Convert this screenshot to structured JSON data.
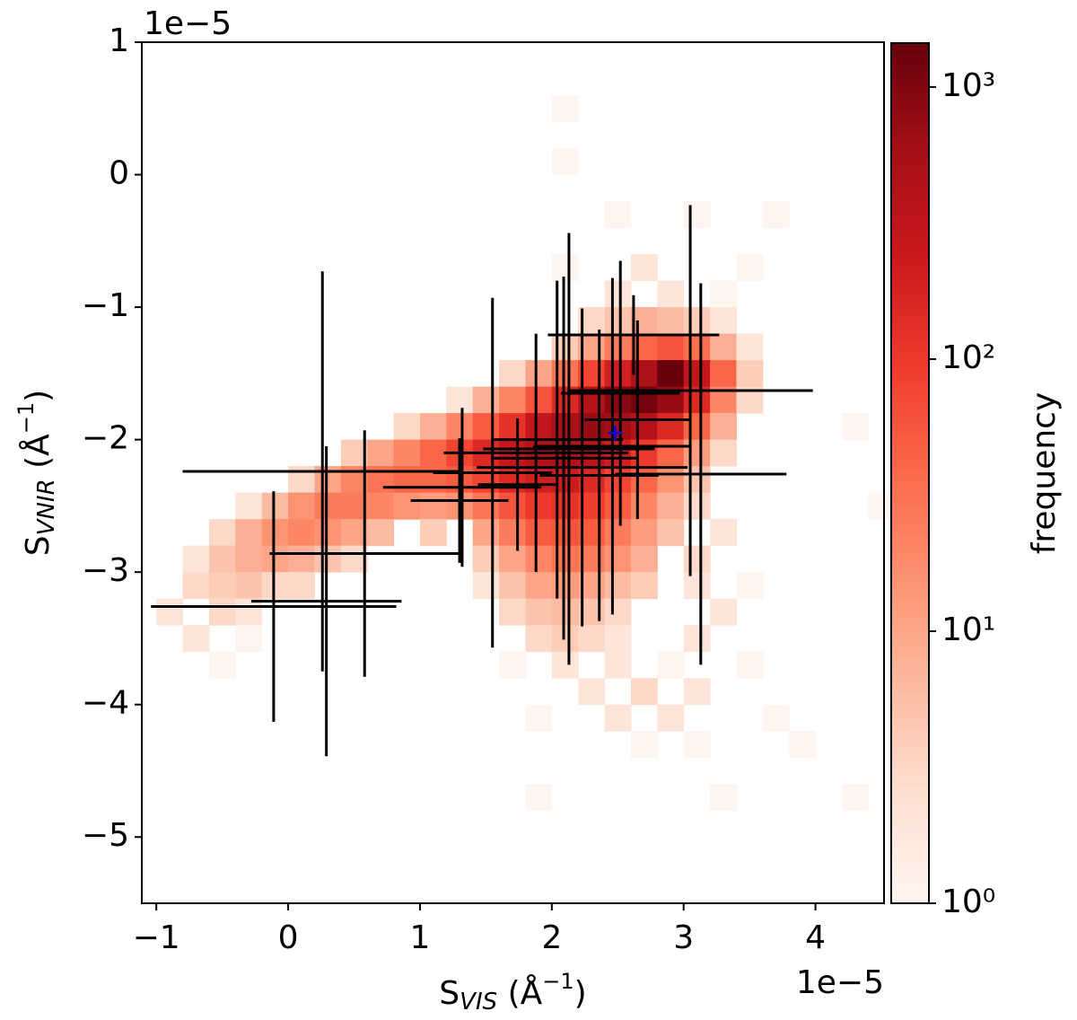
{
  "chart_data": {
    "type": "hist2d",
    "xlabel": [
      "S",
      "VIS",
      " (Å",
      "−1",
      ")"
    ],
    "ylabel": [
      "S",
      "VNIR",
      " (Å",
      "−1",
      ")"
    ],
    "x_offset_text": "1e−5",
    "y_offset_text": "1e−5",
    "xlim": [
      -1.11,
      4.52
    ],
    "ylim": [
      -5.5,
      1
    ],
    "xticks": [
      {
        "value": -1,
        "label": "−1"
      },
      0,
      1,
      2,
      3,
      4
    ],
    "yticks": [
      1,
      0,
      {
        "value": -1,
        "label": "−1"
      },
      {
        "value": -2,
        "label": "−2"
      },
      {
        "value": -3,
        "label": "−3"
      },
      {
        "value": -4,
        "label": "−4"
      },
      {
        "value": -5,
        "label": "−5"
      }
    ],
    "bin_size": [
      0.2,
      0.2
    ],
    "colormap": [
      "#fff5f0",
      "#fee0d2",
      "#fcbba1",
      "#fc9272",
      "#fb6a4a",
      "#ef3b2c",
      "#cb181d",
      "#a50f15",
      "#67000d"
    ],
    "colorbar": {
      "label": "frequency",
      "log": true,
      "clim": [
        1,
        1450
      ],
      "ticks": [
        {
          "value": 1,
          "label": "10⁰"
        },
        {
          "value": 10,
          "label": "10¹"
        },
        {
          "value": 100,
          "label": "10²"
        },
        {
          "value": 1000,
          "label": "10³"
        }
      ]
    },
    "cells": [
      [
        2.0,
        0.4,
        1
      ],
      [
        2.0,
        0.0,
        1
      ],
      [
        2.4,
        -0.4,
        1
      ],
      [
        3.0,
        -0.4,
        1
      ],
      [
        3.6,
        -0.4,
        1
      ],
      [
        2.0,
        -0.8,
        1
      ],
      [
        2.6,
        -0.8,
        2
      ],
      [
        3.4,
        -0.8,
        1
      ],
      [
        2.4,
        -1.0,
        2
      ],
      [
        2.8,
        -1.0,
        2
      ],
      [
        3.2,
        -1.0,
        1
      ],
      [
        2.2,
        -1.2,
        3
      ],
      [
        2.4,
        -1.2,
        5
      ],
      [
        2.6,
        -1.2,
        8
      ],
      [
        2.8,
        -1.2,
        6
      ],
      [
        3.0,
        -1.2,
        4
      ],
      [
        3.2,
        -1.2,
        2
      ],
      [
        2.0,
        -1.4,
        4
      ],
      [
        2.2,
        -1.4,
        10
      ],
      [
        2.4,
        -1.4,
        25
      ],
      [
        2.6,
        -1.4,
        40
      ],
      [
        2.8,
        -1.4,
        60
      ],
      [
        3.0,
        -1.4,
        35
      ],
      [
        3.2,
        -1.4,
        8
      ],
      [
        3.4,
        -1.4,
        2
      ],
      [
        1.6,
        -1.6,
        3
      ],
      [
        1.8,
        -1.6,
        10
      ],
      [
        2.0,
        -1.6,
        30
      ],
      [
        2.2,
        -1.6,
        80
      ],
      [
        2.4,
        -1.6,
        200
      ],
      [
        2.6,
        -1.6,
        500
      ],
      [
        2.8,
        -1.6,
        1400
      ],
      [
        3.0,
        -1.6,
        300
      ],
      [
        3.2,
        -1.6,
        40
      ],
      [
        3.4,
        -1.6,
        4
      ],
      [
        1.2,
        -1.8,
        2
      ],
      [
        1.4,
        -1.8,
        8
      ],
      [
        1.6,
        -1.8,
        20
      ],
      [
        1.8,
        -1.8,
        60
      ],
      [
        2.0,
        -1.8,
        150
      ],
      [
        2.2,
        -1.8,
        400
      ],
      [
        2.4,
        -1.8,
        900
      ],
      [
        2.6,
        -1.8,
        1200
      ],
      [
        2.8,
        -1.8,
        700
      ],
      [
        3.0,
        -1.8,
        150
      ],
      [
        3.2,
        -1.8,
        20
      ],
      [
        3.4,
        -1.8,
        3
      ],
      [
        0.8,
        -2.0,
        3
      ],
      [
        1.0,
        -2.0,
        8
      ],
      [
        1.2,
        -2.0,
        20
      ],
      [
        1.4,
        -2.0,
        50
      ],
      [
        1.6,
        -2.0,
        120
      ],
      [
        1.8,
        -2.0,
        300
      ],
      [
        2.0,
        -2.0,
        500
      ],
      [
        2.2,
        -2.0,
        700
      ],
      [
        2.4,
        -2.0,
        600
      ],
      [
        2.6,
        -2.0,
        400
      ],
      [
        2.8,
        -2.0,
        150
      ],
      [
        3.0,
        -2.0,
        40
      ],
      [
        3.2,
        -2.0,
        8
      ],
      [
        4.2,
        -2.0,
        1
      ],
      [
        0.4,
        -2.2,
        4
      ],
      [
        0.6,
        -2.2,
        10
      ],
      [
        0.8,
        -2.2,
        20
      ],
      [
        1.0,
        -2.2,
        40
      ],
      [
        1.2,
        -2.2,
        80
      ],
      [
        1.4,
        -2.2,
        150
      ],
      [
        1.6,
        -2.2,
        250
      ],
      [
        1.8,
        -2.2,
        400
      ],
      [
        2.0,
        -2.2,
        450
      ],
      [
        2.2,
        -2.2,
        350
      ],
      [
        2.4,
        -2.2,
        200
      ],
      [
        2.6,
        -2.2,
        100
      ],
      [
        2.8,
        -2.2,
        40
      ],
      [
        3.0,
        -2.2,
        12
      ],
      [
        3.2,
        -2.2,
        3
      ],
      [
        0.0,
        -2.4,
        3
      ],
      [
        0.2,
        -2.4,
        10
      ],
      [
        0.4,
        -2.4,
        20
      ],
      [
        0.6,
        -2.4,
        30
      ],
      [
        0.8,
        -2.4,
        40
      ],
      [
        1.0,
        -2.4,
        40
      ],
      [
        1.2,
        -2.4,
        50
      ],
      [
        1.4,
        -2.4,
        80
      ],
      [
        1.6,
        -2.4,
        150
      ],
      [
        1.8,
        -2.4,
        200
      ],
      [
        2.0,
        -2.4,
        220
      ],
      [
        2.2,
        -2.4,
        150
      ],
      [
        2.4,
        -2.4,
        80
      ],
      [
        2.6,
        -2.4,
        40
      ],
      [
        2.8,
        -2.4,
        15
      ],
      [
        3.0,
        -2.4,
        5
      ],
      [
        -0.4,
        -2.6,
        2
      ],
      [
        -0.2,
        -2.6,
        6
      ],
      [
        0.0,
        -2.6,
        15
      ],
      [
        0.2,
        -2.6,
        25
      ],
      [
        0.4,
        -2.6,
        25
      ],
      [
        0.6,
        -2.6,
        20
      ],
      [
        0.8,
        -2.6,
        15
      ],
      [
        1.0,
        -2.6,
        12
      ],
      [
        1.2,
        -2.6,
        15
      ],
      [
        1.4,
        -2.6,
        30
      ],
      [
        1.6,
        -2.6,
        60
      ],
      [
        1.8,
        -2.6,
        100
      ],
      [
        2.0,
        -2.6,
        120
      ],
      [
        2.2,
        -2.6,
        90
      ],
      [
        2.4,
        -2.6,
        50
      ],
      [
        2.6,
        -2.6,
        20
      ],
      [
        2.8,
        -2.6,
        8
      ],
      [
        3.0,
        -2.6,
        3
      ],
      [
        4.4,
        -2.6,
        1
      ],
      [
        -0.6,
        -2.8,
        3
      ],
      [
        -0.4,
        -2.8,
        8
      ],
      [
        -0.2,
        -2.8,
        15
      ],
      [
        0.0,
        -2.8,
        20
      ],
      [
        0.2,
        -2.8,
        15
      ],
      [
        0.4,
        -2.8,
        10
      ],
      [
        0.6,
        -2.8,
        6
      ],
      [
        1.0,
        -2.8,
        4
      ],
      [
        1.4,
        -2.8,
        10
      ],
      [
        1.6,
        -2.8,
        25
      ],
      [
        1.8,
        -2.8,
        50
      ],
      [
        2.0,
        -2.8,
        60
      ],
      [
        2.2,
        -2.8,
        50
      ],
      [
        2.4,
        -2.8,
        25
      ],
      [
        2.6,
        -2.8,
        12
      ],
      [
        2.8,
        -2.8,
        5
      ],
      [
        3.2,
        -2.8,
        2
      ],
      [
        -0.8,
        -3.0,
        2
      ],
      [
        -0.6,
        -3.0,
        5
      ],
      [
        -0.4,
        -3.0,
        8
      ],
      [
        -0.2,
        -3.0,
        10
      ],
      [
        0.0,
        -3.0,
        8
      ],
      [
        0.2,
        -3.0,
        5
      ],
      [
        0.4,
        -3.0,
        3
      ],
      [
        1.4,
        -3.0,
        4
      ],
      [
        1.6,
        -3.0,
        10
      ],
      [
        1.8,
        -3.0,
        20
      ],
      [
        2.0,
        -3.0,
        30
      ],
      [
        2.2,
        -3.0,
        25
      ],
      [
        2.4,
        -3.0,
        15
      ],
      [
        2.6,
        -3.0,
        8
      ],
      [
        3.0,
        -3.0,
        3
      ],
      [
        -0.8,
        -3.2,
        3
      ],
      [
        -0.6,
        -3.2,
        4
      ],
      [
        -0.4,
        -3.2,
        5
      ],
      [
        -0.2,
        -3.2,
        3
      ],
      [
        0.0,
        -3.2,
        3
      ],
      [
        1.4,
        -3.2,
        2
      ],
      [
        1.6,
        -3.2,
        5
      ],
      [
        1.8,
        -3.2,
        10
      ],
      [
        2.0,
        -3.2,
        12
      ],
      [
        2.2,
        -3.2,
        10
      ],
      [
        2.4,
        -3.2,
        6
      ],
      [
        2.6,
        -3.2,
        4
      ],
      [
        3.0,
        -3.2,
        2
      ],
      [
        3.4,
        -3.2,
        1
      ],
      [
        -1.0,
        -3.4,
        2
      ],
      [
        -0.6,
        -3.4,
        3
      ],
      [
        -0.4,
        -3.4,
        2
      ],
      [
        1.6,
        -3.4,
        3
      ],
      [
        1.8,
        -3.4,
        5
      ],
      [
        2.0,
        -3.4,
        6
      ],
      [
        2.2,
        -3.4,
        5
      ],
      [
        2.4,
        -3.4,
        3
      ],
      [
        3.2,
        -3.4,
        2
      ],
      [
        -0.8,
        -3.6,
        2
      ],
      [
        -0.4,
        -3.6,
        1
      ],
      [
        1.8,
        -3.6,
        3
      ],
      [
        2.0,
        -3.6,
        4
      ],
      [
        2.2,
        -3.6,
        3
      ],
      [
        2.4,
        -3.6,
        2
      ],
      [
        3.0,
        -3.6,
        2
      ],
      [
        -0.6,
        -3.8,
        1
      ],
      [
        1.6,
        -3.8,
        1
      ],
      [
        2.0,
        -3.8,
        2
      ],
      [
        2.4,
        -3.8,
        2
      ],
      [
        2.8,
        -3.8,
        1
      ],
      [
        3.4,
        -3.8,
        1
      ],
      [
        2.2,
        -4.0,
        2
      ],
      [
        2.6,
        -4.0,
        3
      ],
      [
        3.0,
        -4.0,
        2
      ],
      [
        1.8,
        -4.2,
        1
      ],
      [
        2.4,
        -4.2,
        2
      ],
      [
        2.8,
        -4.2,
        2
      ],
      [
        3.6,
        -4.2,
        1
      ],
      [
        2.6,
        -4.4,
        1
      ],
      [
        3.0,
        -4.4,
        1
      ],
      [
        3.8,
        -4.4,
        1
      ],
      [
        1.8,
        -4.8,
        1
      ],
      [
        3.2,
        -4.8,
        1
      ],
      [
        4.2,
        -4.8,
        1
      ]
    ],
    "errorbars": {
      "color": "#000000",
      "x": [
        0.29,
        -0.11,
        0.26,
        0.58,
        1.3,
        1.32,
        1.55,
        1.74,
        1.88,
        2.04,
        2.09,
        2.13,
        2.23,
        2.36,
        2.46,
        2.52,
        2.65,
        3.05,
        3.13,
        2.62
      ],
      "y": [
        -3.22,
        -3.26,
        -2.24,
        -2.86,
        -2.46,
        -2.36,
        -2.25,
        -2.34,
        -2.1,
        -2.0,
        -2.14,
        -2.07,
        -2.21,
        -2.27,
        -2.05,
        -1.65,
        -1.85,
        -1.63,
        -2.26,
        -1.21
      ],
      "xerr": [
        0.57,
        0.93,
        1.06,
        0.72,
        0.37,
        0.6,
        0.45,
        0.3,
        0.7,
        0.5,
        0.55,
        0.65,
        0.8,
        0.45,
        0.6,
        0.45,
        0.4,
        0.93,
        0.65,
        0.65
      ],
      "yerr": [
        1.17,
        0.87,
        1.51,
        0.93,
        0.47,
        0.6,
        1.32,
        0.5,
        0.9,
        1.2,
        1.37,
        1.63,
        1.2,
        1.1,
        1.27,
        1.0,
        0.75,
        1.4,
        1.44,
        0.3
      ]
    },
    "marker": {
      "x": 2.48,
      "y": -1.95,
      "color": "#0000ff"
    }
  }
}
